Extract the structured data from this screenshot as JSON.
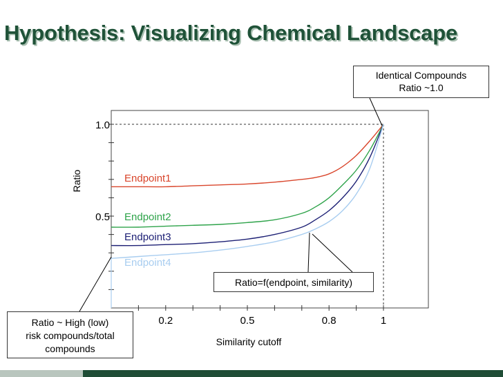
{
  "slide": {
    "title": "Hypothesis: Visualizing Chemical Landscape"
  },
  "callouts": {
    "identical": "Identical Compounds\nRatio ~1.0",
    "ratio_function": "Ratio=f(endpoint, similarity)",
    "high_low": "Ratio ~ High (low)\nrisk compounds/total\ncompounds"
  },
  "chart_data": {
    "type": "line",
    "xlabel": "Similarity cutoff",
    "ylabel": "Ratio",
    "x_ticks": [
      0.2,
      0.5,
      0.8,
      1
    ],
    "x_tick_labels": [
      "0.2",
      "0.5",
      "0.8",
      "1"
    ],
    "y_ticks": [
      0.5,
      1.0
    ],
    "y_tick_labels": [
      "0.5",
      "1.0"
    ],
    "xlim": [
      0,
      1.2
    ],
    "ylim": [
      0,
      1.1
    ],
    "grid": false,
    "legend": "inline labels",
    "series": [
      {
        "name": "Endpoint1",
        "color": "#d9452b",
        "x": [
          0,
          0.1,
          0.2,
          0.3,
          0.4,
          0.5,
          0.6,
          0.7,
          0.75,
          0.8,
          0.85,
          0.9,
          0.95,
          1.0
        ],
        "y": [
          0.66,
          0.66,
          0.66,
          0.665,
          0.67,
          0.675,
          0.685,
          0.7,
          0.71,
          0.73,
          0.77,
          0.83,
          0.91,
          1.0
        ]
      },
      {
        "name": "Endpoint2",
        "color": "#2ea34a",
        "x": [
          0,
          0.1,
          0.2,
          0.3,
          0.4,
          0.5,
          0.6,
          0.7,
          0.75,
          0.8,
          0.85,
          0.9,
          0.95,
          1.0
        ],
        "y": [
          0.44,
          0.44,
          0.445,
          0.45,
          0.455,
          0.465,
          0.48,
          0.515,
          0.55,
          0.6,
          0.67,
          0.75,
          0.86,
          1.0
        ]
      },
      {
        "name": "Endpoint3",
        "color": "#1c1f74",
        "x": [
          0,
          0.1,
          0.2,
          0.3,
          0.4,
          0.5,
          0.6,
          0.7,
          0.75,
          0.8,
          0.85,
          0.9,
          0.95,
          1.0
        ],
        "y": [
          0.34,
          0.34,
          0.345,
          0.35,
          0.36,
          0.375,
          0.4,
          0.44,
          0.48,
          0.53,
          0.6,
          0.69,
          0.82,
          1.0
        ]
      },
      {
        "name": "Endpoint4",
        "color": "#a8cdf0",
        "x": [
          0,
          0.1,
          0.2,
          0.3,
          0.4,
          0.5,
          0.6,
          0.7,
          0.75,
          0.8,
          0.85,
          0.9,
          0.95,
          1.0
        ],
        "y": [
          0.27,
          0.28,
          0.29,
          0.3,
          0.315,
          0.335,
          0.36,
          0.4,
          0.43,
          0.47,
          0.53,
          0.62,
          0.76,
          1.0
        ]
      }
    ]
  }
}
